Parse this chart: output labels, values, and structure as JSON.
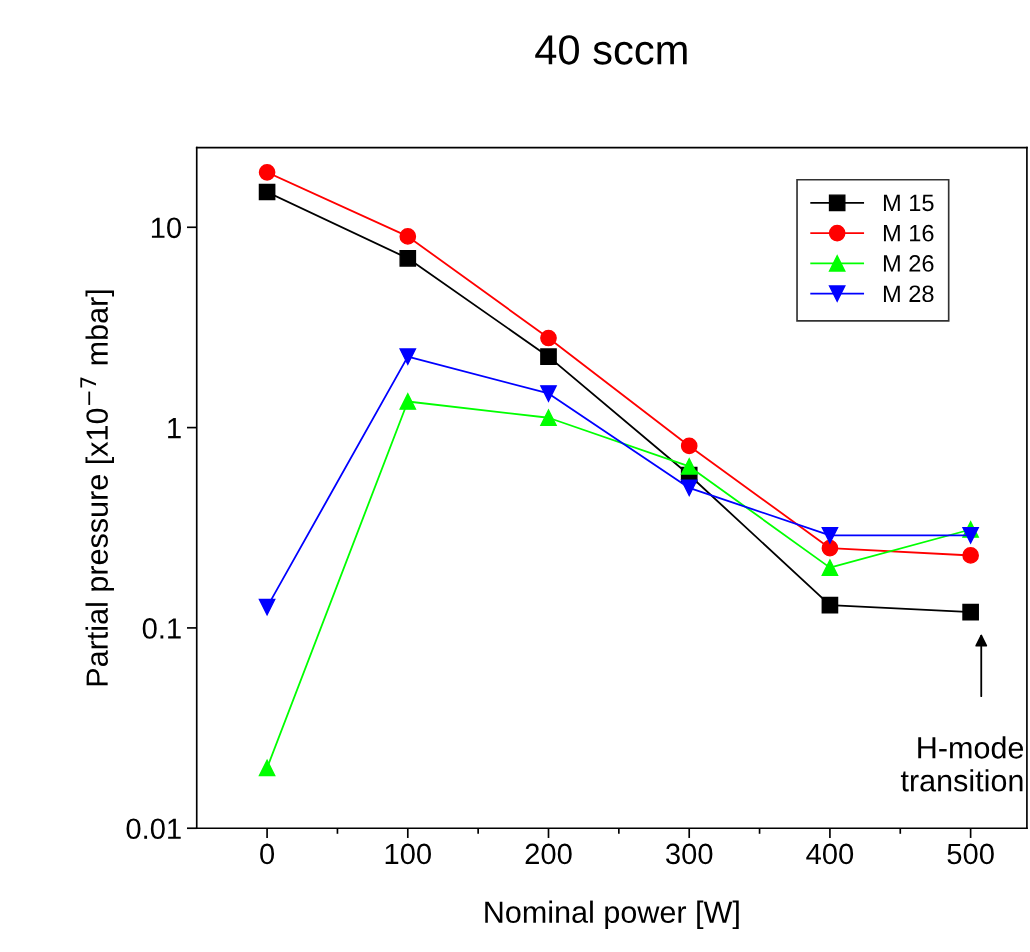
{
  "chart_data": {
    "type": "line",
    "title": "40 sccm",
    "xlabel": "Nominal power [W]",
    "ylabel": "Partial pressure [x10$^{−7}$ mbar]",
    "x": [
      0,
      100,
      200,
      300,
      400,
      500
    ],
    "series": [
      {
        "name": "M 15",
        "color": "#000000",
        "marker": "square",
        "values": [
          15,
          7.0,
          2.26,
          0.58,
          0.13,
          0.12
        ]
      },
      {
        "name": "M 16",
        "color": "#ff0000",
        "marker": "circle",
        "values": [
          18.8,
          9.0,
          2.8,
          0.81,
          0.25,
          0.23
        ]
      },
      {
        "name": "M 26",
        "color": "#00ff00",
        "marker": "triangle",
        "values": [
          0.02,
          1.35,
          1.12,
          0.64,
          0.2,
          0.31
        ]
      },
      {
        "name": "M 28",
        "color": "#0000ff",
        "marker": "triangle_down",
        "values": [
          0.127,
          2.26,
          1.48,
          0.5,
          0.29,
          0.29
        ]
      }
    ],
    "log": "y",
    "xlim": [
      -50,
      540
    ],
    "ylim": [
      0.01,
      25
    ],
    "xticks": [
      0,
      100,
      200,
      300,
      400,
      500,
      {
        "value": 50,
        "label": null
      },
      {
        "value": 150,
        "label": null
      },
      {
        "value": 250,
        "label": null
      },
      {
        "value": 350,
        "label": null
      },
      {
        "value": 450,
        "label": null
      }
    ],
    "yticks": [
      {
        "value": 0.01,
        "label": "0.01"
      },
      {
        "value": 0.1,
        "label": "0.1"
      },
      {
        "value": 1,
        "label": "1"
      },
      {
        "value": 10,
        "label": "10"
      }
    ],
    "annotations": [
      "H-mode\ntransition"
    ],
    "grid": false,
    "legend": "top right",
    "line_style": "solid"
  }
}
